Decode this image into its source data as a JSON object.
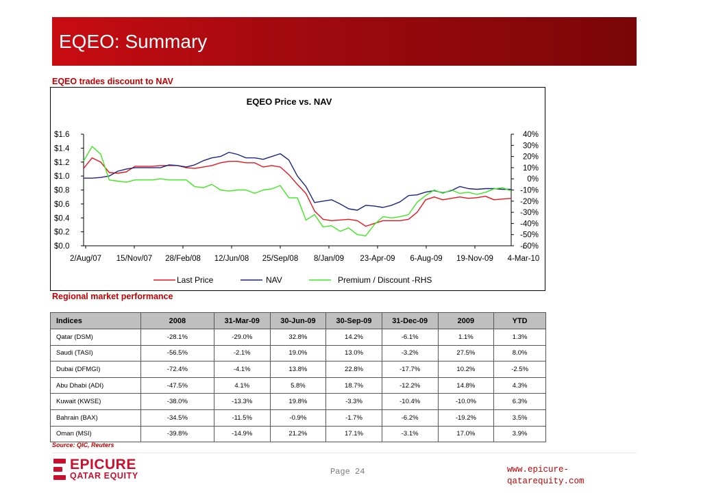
{
  "header": {
    "title": "EQEO: Summary"
  },
  "chart_section": {
    "label": "EQEO trades discount to NAV"
  },
  "table_section": {
    "label": "Regional market performance"
  },
  "chart_data": {
    "type": "line",
    "title": "EQEO Price vs. NAV",
    "x_tick_labels": [
      "2/Aug/07",
      "15/Nov/07",
      "28/Feb/08",
      "12/Jun/08",
      "25/Sep/08",
      "8/Jan/09",
      "23-Apr-09",
      "6-Aug-09",
      "19-Nov-09",
      "4-Mar-10"
    ],
    "y_left": {
      "ticks": [
        "$0.0",
        "$0.2",
        "$0.4",
        "$0.6",
        "$0.8",
        "$1.0",
        "$1.2",
        "$1.4",
        "$1.6"
      ],
      "range": [
        0,
        1.6
      ]
    },
    "y_right": {
      "ticks": [
        "-60%",
        "-50%",
        "-40%",
        "-30%",
        "-20%",
        "-10%",
        "0%",
        "10%",
        "20%",
        "30%",
        "40%"
      ],
      "range": [
        -60,
        40
      ]
    },
    "x": [
      0,
      0.02,
      0.04,
      0.06,
      0.08,
      0.1,
      0.12,
      0.14,
      0.16,
      0.18,
      0.2,
      0.22,
      0.24,
      0.26,
      0.28,
      0.3,
      0.32,
      0.34,
      0.36,
      0.38,
      0.4,
      0.42,
      0.44,
      0.46,
      0.48,
      0.5,
      0.52,
      0.54,
      0.56,
      0.58,
      0.6,
      0.62,
      0.64,
      0.66,
      0.68,
      0.7,
      0.72,
      0.74,
      0.76,
      0.78,
      0.8,
      0.82,
      0.84,
      0.86,
      0.88,
      0.9,
      0.92,
      0.94,
      0.96,
      0.98,
      1.0
    ],
    "series": [
      {
        "name": "Last Price",
        "axis": "left",
        "color": "#e8141c",
        "values": [
          1.11,
          1.26,
          1.2,
          1.05,
          1.04,
          1.06,
          1.14,
          1.14,
          1.14,
          1.15,
          1.15,
          1.15,
          1.12,
          1.11,
          1.13,
          1.15,
          1.19,
          1.21,
          1.21,
          1.19,
          1.19,
          1.13,
          1.15,
          1.13,
          1.02,
          0.88,
          0.75,
          0.5,
          0.38,
          0.36,
          0.37,
          0.38,
          0.36,
          0.28,
          0.32,
          0.36,
          0.36,
          0.36,
          0.38,
          0.48,
          0.66,
          0.7,
          0.66,
          0.68,
          0.7,
          0.68,
          0.69,
          0.71,
          0.66,
          0.67,
          0.68
        ]
      },
      {
        "name": "NAV",
        "axis": "left",
        "color": "#1a237e",
        "values": [
          0.97,
          0.97,
          0.98,
          1.0,
          1.07,
          1.1,
          1.12,
          1.12,
          1.12,
          1.12,
          1.16,
          1.15,
          1.13,
          1.16,
          1.22,
          1.26,
          1.28,
          1.34,
          1.31,
          1.26,
          1.26,
          1.24,
          1.28,
          1.32,
          1.23,
          1.0,
          0.85,
          0.62,
          0.64,
          0.66,
          0.6,
          0.53,
          0.51,
          0.58,
          0.57,
          0.55,
          0.58,
          0.63,
          0.72,
          0.73,
          0.77,
          0.79,
          0.76,
          0.79,
          0.85,
          0.82,
          0.81,
          0.82,
          0.82,
          0.81,
          0.81
        ]
      },
      {
        "name": "Premium / Discount -RHS",
        "axis": "right",
        "color": "#3de81f",
        "values": [
          16,
          29,
          22,
          -1,
          -2,
          -3,
          -1,
          -1,
          -1,
          0,
          -1,
          -1,
          -1,
          -7,
          -8,
          -5,
          -10,
          -11,
          -10,
          -10,
          -13,
          -10,
          -9,
          -6,
          -17,
          -17,
          -37,
          -32,
          -43,
          -42,
          -47,
          -44,
          -50,
          -51,
          -41,
          -34,
          -35,
          -34,
          -32,
          -21,
          -15,
          -10,
          -13,
          -10,
          -13,
          -12,
          -14,
          -12,
          -9,
          -8,
          -11
        ]
      }
    ],
    "legend": [
      "Last Price",
      "NAV",
      "Premium / Discount -RHS"
    ],
    "legend_position": "bottom",
    "grid": false
  },
  "table": {
    "headers": [
      "Indices",
      "2008",
      "31-Mar-09",
      "30-Jun-09",
      "30-Sep-09",
      "31-Dec-09",
      "2009",
      "YTD"
    ],
    "rows": [
      [
        "Qatar (DSM)",
        "-28.1%",
        "-29.0%",
        "32.8%",
        "14.2%",
        "-6.1%",
        "1.1%",
        "1.3%"
      ],
      [
        "Saudi (TASI)",
        "-56.5%",
        "-2.1%",
        "19.0%",
        "13.0%",
        "-3.2%",
        "27.5%",
        "8.0%"
      ],
      [
        "Dubai (DFMGI)",
        "-72.4%",
        "-4.1%",
        "13.8%",
        "22.8%",
        "-17.7%",
        "10.2%",
        "-2.5%"
      ],
      [
        "Abu Dhabi (ADI)",
        "-47.5%",
        "4.1%",
        "5.8%",
        "18.7%",
        "-12.2%",
        "14.8%",
        "4.3%"
      ],
      [
        "Kuwait (KWSE)",
        "-38.0%",
        "-13.3%",
        "19.8%",
        "-3.3%",
        "-10.4%",
        "-10.0%",
        "6.3%"
      ],
      [
        "Bahrain (BAX)",
        "-34.5%",
        "-11.5%",
        "-0.9%",
        "-1.7%",
        "-6.2%",
        "-19.2%",
        "3.5%"
      ],
      [
        "Oman (MSI)",
        "-39.8%",
        "-14.9%",
        "21.2%",
        "17.1%",
        "-3.1%",
        "17.0%",
        "3.9%"
      ]
    ]
  },
  "source": "Source: QIC, Reuters",
  "footer": {
    "logo_line1": "EPICURE",
    "logo_line2": "QATAR EQUITY",
    "page": "Page 24",
    "website": "www.epicure-qatarequity.com"
  }
}
